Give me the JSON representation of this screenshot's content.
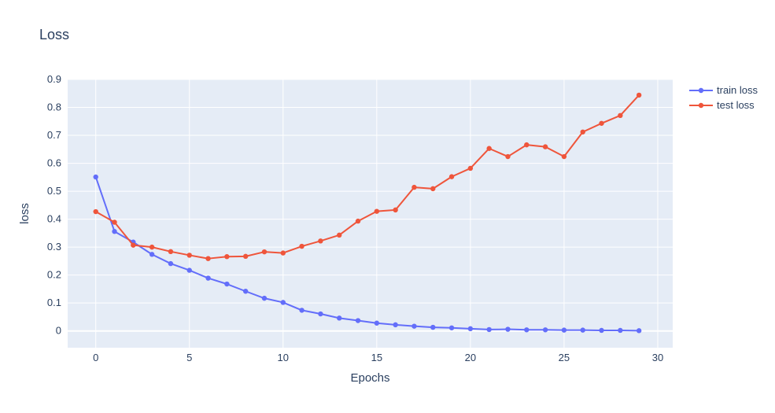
{
  "chart_data": {
    "type": "line",
    "title": "Loss",
    "xlabel": "Epochs",
    "ylabel": "loss",
    "xlim": [
      -1.5,
      30.8
    ],
    "ylim": [
      -0.06,
      0.9
    ],
    "x_ticks": [
      0,
      5,
      10,
      15,
      20,
      25,
      30
    ],
    "y_ticks": [
      0,
      0.1,
      0.2,
      0.3,
      0.4,
      0.5,
      0.6,
      0.7,
      0.8,
      0.9
    ],
    "grid": true,
    "legend_position": "top-right",
    "x": [
      0,
      1,
      2,
      3,
      4,
      5,
      6,
      7,
      8,
      9,
      10,
      11,
      12,
      13,
      14,
      15,
      16,
      17,
      18,
      19,
      20,
      21,
      22,
      23,
      24,
      25,
      26,
      27,
      28,
      29
    ],
    "series": [
      {
        "name": "train loss",
        "color": "#636efa",
        "values": [
          0.551,
          0.356,
          0.318,
          0.274,
          0.241,
          0.217,
          0.189,
          0.168,
          0.142,
          0.117,
          0.102,
          0.074,
          0.061,
          0.046,
          0.037,
          0.028,
          0.022,
          0.017,
          0.013,
          0.011,
          0.008,
          0.005,
          0.006,
          0.004,
          0.004,
          0.003,
          0.003,
          0.002,
          0.002,
          0.001
        ]
      },
      {
        "name": "test loss",
        "color": "#ef553b",
        "values": [
          0.427,
          0.389,
          0.307,
          0.3,
          0.284,
          0.271,
          0.259,
          0.266,
          0.267,
          0.283,
          0.279,
          0.303,
          0.322,
          0.343,
          0.393,
          0.428,
          0.433,
          0.514,
          0.509,
          0.552,
          0.582,
          0.653,
          0.624,
          0.666,
          0.659,
          0.624,
          0.712,
          0.743,
          0.771,
          0.844
        ]
      }
    ]
  }
}
